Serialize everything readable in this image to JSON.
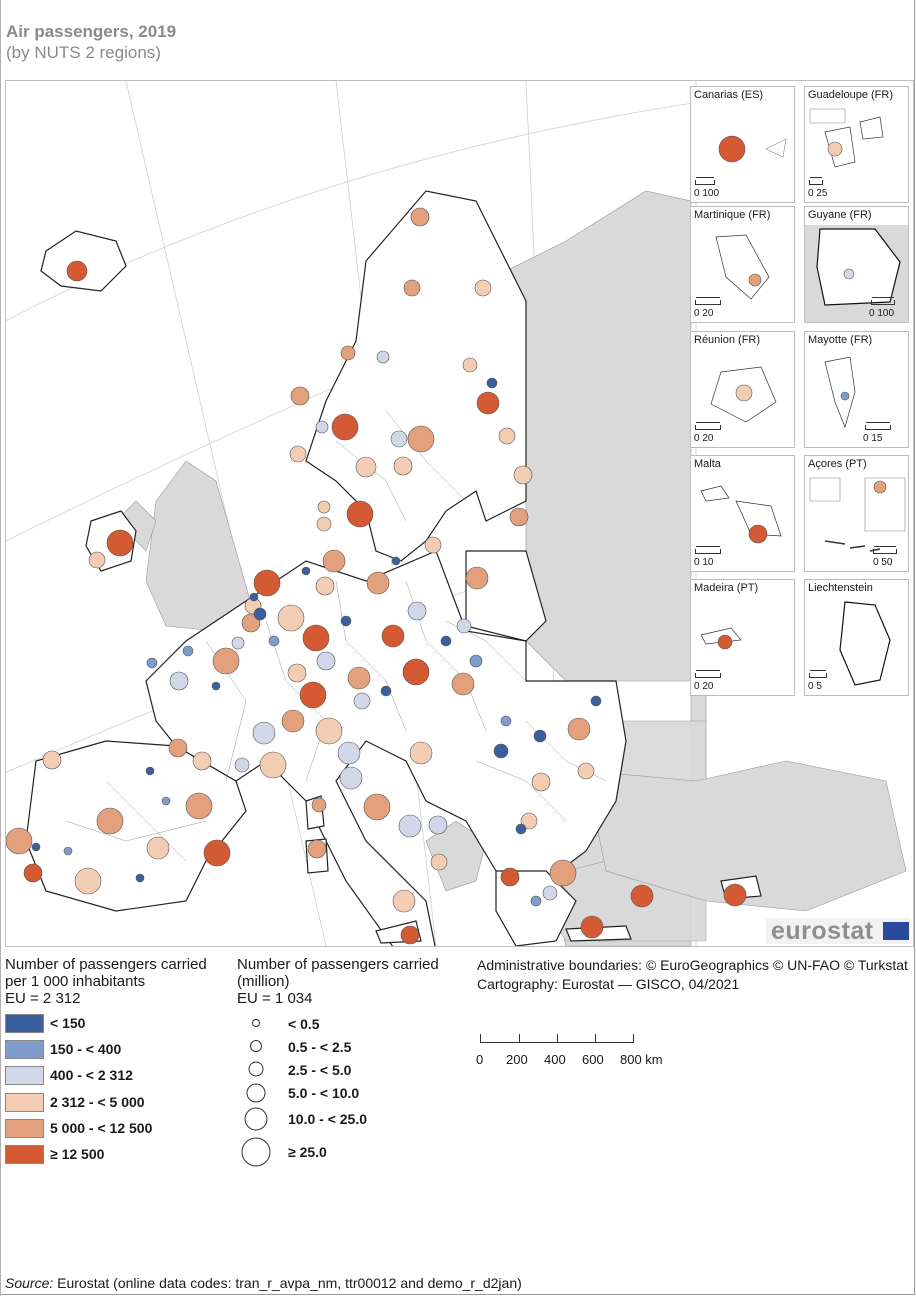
{
  "title": "Air passengers, 2019",
  "subtitle": "(by NUTS 2 regions)",
  "insets": [
    {
      "name": "Canarias (ES)",
      "scale": "0  100"
    },
    {
      "name": "Guadeloupe (FR)",
      "scale": "0  25"
    },
    {
      "name": "Martinique (FR)",
      "scale": "0   20"
    },
    {
      "name": "Guyane (FR)",
      "scale": "0  100"
    },
    {
      "name": "Réunion (FR)",
      "scale": "0    20"
    },
    {
      "name": "Mayotte (FR)",
      "scale": "0     15"
    },
    {
      "name": "Malta",
      "scale": "0    10"
    },
    {
      "name": "Açores (PT)",
      "scale": "0  50"
    },
    {
      "name": "Madeira (PT)",
      "scale": "0   20"
    },
    {
      "name": "Liechtenstein",
      "scale": "0   5"
    }
  ],
  "logo": "eurostat",
  "legend_rate": {
    "title_line1": "Number of passengers carried",
    "title_line2": "per 1 000 inhabitants",
    "title_line3": "EU = 2 312",
    "classes": [
      {
        "label": "< 150",
        "color": "#3b5f9c"
      },
      {
        "label": "150 - < 400",
        "color": "#7f9ccc"
      },
      {
        "label": "400 - < 2 312",
        "color": "#d1d7e8"
      },
      {
        "label": "2 312 - < 5 000",
        "color": "#f3cdb3"
      },
      {
        "label": "5 000 - < 12 500",
        "color": "#e3a07c"
      },
      {
        "label": "≥ 12 500",
        "color": "#d45a33"
      }
    ]
  },
  "legend_size": {
    "title_line1": "Number of passengers carried",
    "title_line2": "(million)",
    "title_line3": "EU = 1 034",
    "classes": [
      {
        "label": "< 0.5"
      },
      {
        "label": "0.5 - < 2.5"
      },
      {
        "label": "2.5 - < 5.0"
      },
      {
        "label": "5.0 - < 10.0"
      },
      {
        "label": "10.0 - < 25.0"
      },
      {
        "label": "≥ 25.0"
      }
    ]
  },
  "credits": {
    "line1": "Administrative boundaries: © EuroGeographics © UN-FAO © Turkstat",
    "line2": "Cartography: Eurostat — GISCO, 04/2021"
  },
  "scale": {
    "labels": [
      "0",
      "200",
      "400",
      "600",
      "800 km"
    ]
  },
  "source": {
    "prefix": "Source:",
    "text": " Eurostat (online data codes: tran_r_avpa_nm, ttr00012 and demo_r_d2jan)"
  },
  "colors": {
    "land_eu": "#ffffff",
    "land_non_eu": "#d9d9d9",
    "sea": "#ffffff"
  }
}
